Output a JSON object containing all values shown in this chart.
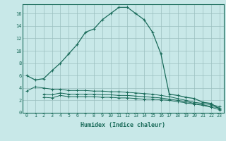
{
  "xlabel": "Humidex (Indice chaleur)",
  "bg_color": "#c8e8e8",
  "grid_color": "#9bbfbf",
  "line_color": "#1a6b5a",
  "xlim": [
    -0.5,
    23.5
  ],
  "ylim": [
    0,
    17.5
  ],
  "xticks": [
    0,
    1,
    2,
    3,
    4,
    5,
    6,
    7,
    8,
    9,
    10,
    11,
    12,
    13,
    14,
    15,
    16,
    17,
    18,
    19,
    20,
    21,
    22,
    23
  ],
  "yticks": [
    0,
    2,
    4,
    6,
    8,
    10,
    12,
    14,
    16
  ],
  "line1_x": [
    0,
    1,
    2,
    3,
    4,
    5,
    6,
    7,
    8,
    9,
    10,
    11,
    12,
    13,
    14,
    15,
    16,
    17,
    18,
    19,
    20,
    21,
    22,
    23
  ],
  "line1_y": [
    6.0,
    5.3,
    5.5,
    6.8,
    8.0,
    9.5,
    11.0,
    13.0,
    13.5,
    15.0,
    16.0,
    17.0,
    17.0,
    16.0,
    15.0,
    13.0,
    9.5,
    3.0,
    2.8,
    2.5,
    2.3,
    1.7,
    1.5,
    0.6
  ],
  "line2_x": [
    0,
    1,
    2,
    3,
    4,
    5,
    6,
    7,
    8,
    9,
    10,
    11,
    12,
    13,
    14,
    15,
    16,
    17,
    18,
    19,
    20,
    21,
    22,
    23
  ],
  "line2_y": [
    3.5,
    4.2,
    4.0,
    3.8,
    3.8,
    3.6,
    3.6,
    3.6,
    3.5,
    3.5,
    3.4,
    3.4,
    3.3,
    3.2,
    3.1,
    3.0,
    2.8,
    2.6,
    2.3,
    2.0,
    1.7,
    1.5,
    1.3,
    1.0
  ],
  "line3_x": [
    2,
    3,
    4,
    5,
    6,
    7,
    8,
    9,
    10,
    11,
    12,
    13,
    14,
    15,
    16,
    17,
    18,
    19,
    20,
    21,
    22,
    23
  ],
  "line3_y": [
    3.0,
    2.9,
    3.2,
    3.0,
    3.0,
    3.0,
    3.0,
    2.9,
    2.9,
    2.8,
    2.8,
    2.7,
    2.6,
    2.5,
    2.4,
    2.2,
    2.0,
    1.8,
    1.5,
    1.3,
    1.0,
    0.8
  ],
  "line4_x": [
    2,
    3,
    4,
    5,
    6,
    7,
    8,
    9,
    10,
    11,
    12,
    13,
    14,
    15,
    16,
    17,
    18,
    19,
    20,
    21,
    22,
    23
  ],
  "line4_y": [
    2.5,
    2.4,
    2.8,
    2.6,
    2.6,
    2.6,
    2.6,
    2.5,
    2.5,
    2.4,
    2.4,
    2.3,
    2.2,
    2.2,
    2.1,
    2.0,
    1.8,
    1.6,
    1.4,
    1.2,
    0.9,
    0.5
  ]
}
